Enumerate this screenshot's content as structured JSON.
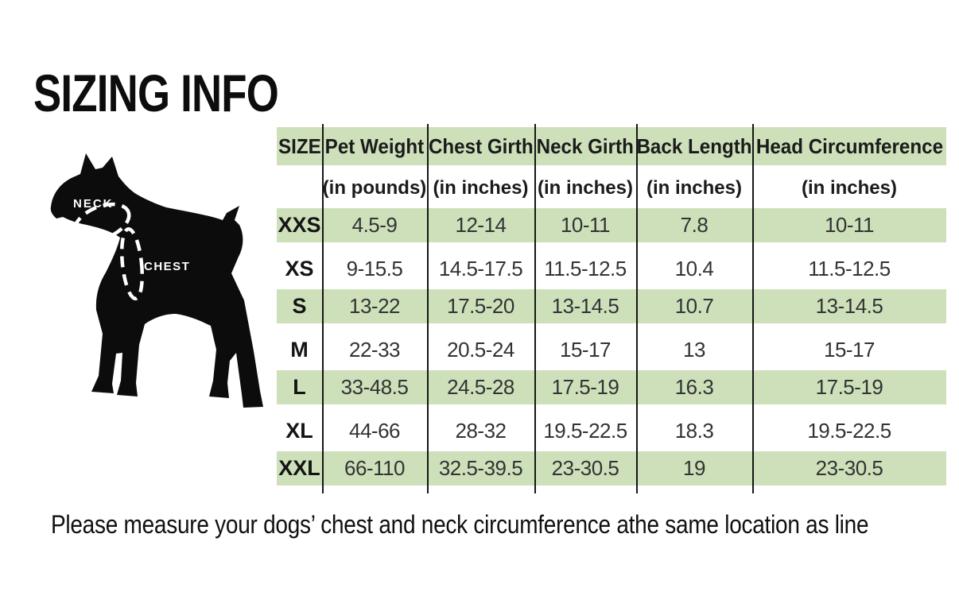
{
  "page_title": "SIZING INFO",
  "diagram": {
    "neck_label": "NECK",
    "chest_label": "CHEST"
  },
  "footnote": "Please measure your dogs’ chest and neck circumference athe same location as line",
  "colors": {
    "row_green": "#cde0ba",
    "row_white": "#ffffff",
    "grid_line": "#161616",
    "dog_silhouette": "#0c0c0c",
    "measure_line": "#ffffff"
  },
  "chart_data": {
    "type": "table",
    "title": "SIZING INFO",
    "columns": [
      "SIZE",
      "Pet Weight",
      "Chest Girth",
      "Neck Girth",
      "Back Length",
      "Head Circumference"
    ],
    "units": [
      "",
      "(in pounds)",
      "(in inches)",
      "(in inches)",
      "(in inches)",
      "(in inches)"
    ],
    "rows": [
      [
        "XXS",
        "4.5-9",
        "12-14",
        "10-11",
        "7.8",
        "10-11"
      ],
      [
        "XS",
        "9-15.5",
        "14.5-17.5",
        "11.5-12.5",
        "10.4",
        "11.5-12.5"
      ],
      [
        "S",
        "13-22",
        "17.5-20",
        "13-14.5",
        "10.7",
        "13-14.5"
      ],
      [
        "M",
        "22-33",
        "20.5-24",
        "15-17",
        "13",
        "15-17"
      ],
      [
        "L",
        "33-48.5",
        "24.5-28",
        "17.5-19",
        "16.3",
        "17.5-19"
      ],
      [
        "XL",
        "44-66",
        "28-32",
        "19.5-22.5",
        "18.3",
        "19.5-22.5"
      ],
      [
        "XXL",
        "66-110",
        "32.5-39.5",
        "23-30.5",
        "19",
        "23-30.5"
      ]
    ]
  }
}
